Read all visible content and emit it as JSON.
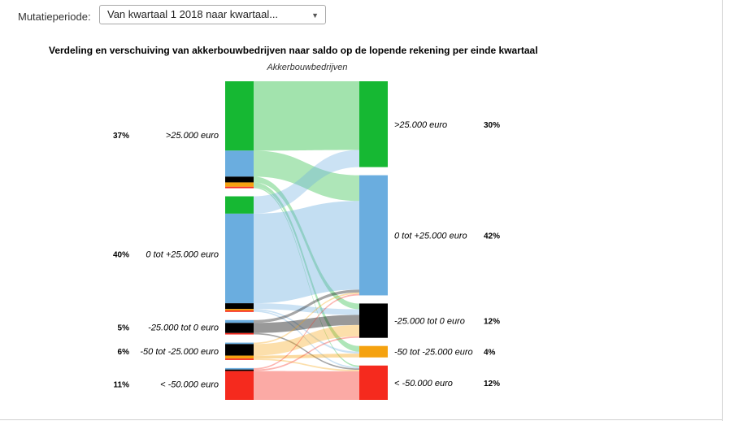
{
  "controls": {
    "period_label": "Mutatieperiode:",
    "period_value": "Van kwartaal 1 2018 naar kwartaal...",
    "dropdown_icon": "chevron-down-icon"
  },
  "chart_data": {
    "type": "sankey",
    "title": "Verdeling en verschuiving van akkerbouwbedrijven naar saldo op de lopende rekening per einde kwartaal",
    "subtitle": "Akkerbouwbedrijven",
    "colors": {
      ">25.000 euro": "#16b833",
      "0 tot +25.000 euro": "#6aaddf",
      "-25.000 tot 0 euro": "#000000",
      "-50 tot -25.000 euro": "#f5a20f",
      "< -50.000 euro": "#f52a1e"
    },
    "source_nodes": [
      {
        "label": ">25.000 euro",
        "percent": "37%",
        "value": 37
      },
      {
        "label": "0 tot +25.000 euro",
        "percent": "40%",
        "value": 40
      },
      {
        "label": "-25.000 tot 0 euro",
        "percent": "5%",
        "value": 5
      },
      {
        "label": "-50 tot -25.000 euro",
        "percent": "6%",
        "value": 6
      },
      {
        "label": "< -50.000 euro",
        "percent": "11%",
        "value": 11
      }
    ],
    "target_nodes": [
      {
        "label": ">25.000 euro",
        "percent": "30%",
        "value": 30
      },
      {
        "label": "0 tot +25.000 euro",
        "percent": "42%",
        "value": 42
      },
      {
        "label": "-25.000 tot 0 euro",
        "percent": "12%",
        "value": 12
      },
      {
        "label": "-50 tot -25.000 euro",
        "percent": "4%",
        "value": 4
      },
      {
        "label": "< -50.000 euro",
        "percent": "12%",
        "value": 12
      }
    ],
    "flows": [
      {
        "from": 0,
        "to": 0,
        "value": 24
      },
      {
        "from": 0,
        "to": 1,
        "value": 9
      },
      {
        "from": 0,
        "to": 2,
        "value": 2
      },
      {
        "from": 0,
        "to": 3,
        "value": 1.5
      },
      {
        "from": 0,
        "to": 4,
        "value": 0.5
      },
      {
        "from": 1,
        "to": 0,
        "value": 6
      },
      {
        "from": 1,
        "to": 1,
        "value": 31
      },
      {
        "from": 1,
        "to": 2,
        "value": 2
      },
      {
        "from": 1,
        "to": 3,
        "value": 0.5
      },
      {
        "from": 1,
        "to": 4,
        "value": 0.5
      },
      {
        "from": 2,
        "to": 1,
        "value": 1
      },
      {
        "from": 2,
        "to": 2,
        "value": 3.5
      },
      {
        "from": 2,
        "to": 4,
        "value": 0.5
      },
      {
        "from": 3,
        "to": 1,
        "value": 0.5
      },
      {
        "from": 3,
        "to": 2,
        "value": 4
      },
      {
        "from": 3,
        "to": 3,
        "value": 1
      },
      {
        "from": 3,
        "to": 4,
        "value": 0.5
      },
      {
        "from": 4,
        "to": 1,
        "value": 0.5
      },
      {
        "from": 4,
        "to": 2,
        "value": 0.5
      },
      {
        "from": 4,
        "to": 4,
        "value": 10
      }
    ]
  }
}
